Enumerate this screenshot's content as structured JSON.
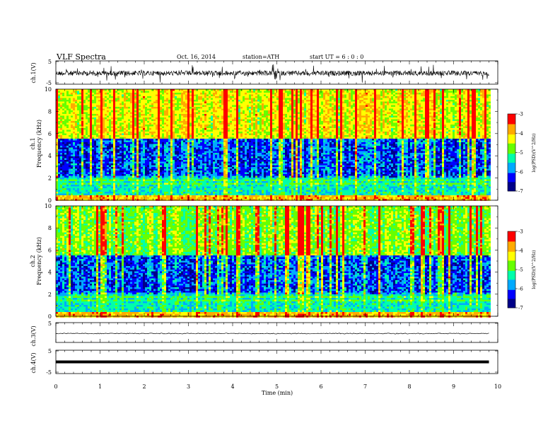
{
  "header": {
    "title": "VLF  Spectra",
    "date": "Oct. 16, 2014",
    "station": "station=ATH",
    "start": "start  UT  =   6  : 0  : 0"
  },
  "chart_data": [
    {
      "type": "line",
      "name": "ch1-waveform",
      "ylabel": "ch.1(V)",
      "ylim": [
        -5,
        5
      ],
      "y_ticks": [
        "5",
        "-5"
      ],
      "style": "noisy broadband waveform around +0.3 V with spikes up to ~±2 V",
      "xlim": [
        0,
        9.8
      ]
    },
    {
      "type": "heatmap",
      "name": "ch1-spectrogram",
      "ylabel_line1": "ch.1",
      "ylabel_line2": "Frequency  (kHz)",
      "ylim": [
        0,
        10
      ],
      "y_ticks": [
        "0",
        "2",
        "4",
        "6",
        "8",
        "10"
      ],
      "xlim": [
        0,
        9.8
      ],
      "colorbar": {
        "label": "log(PSD)(V^2/Hz)",
        "range": [
          -7,
          -3
        ],
        "ticks": [
          "-3",
          "-4",
          "-5",
          "-6",
          "-7"
        ],
        "colormap": [
          "#000088",
          "#0000ff",
          "#00aaff",
          "#00ffaa",
          "#66ff00",
          "#ffff00",
          "#ffaa00",
          "#ff0000",
          "#ffffff"
        ]
      },
      "description_bands_khz": {
        "0-0.5": "red/orange strong narrow lines",
        "0.5-2": "cyan/green horizontal lines",
        "2-5.5": "blue/cyan with dark blue patches",
        "5.5-10": "green/yellow/red broadband with vertical sferic streaks"
      }
    },
    {
      "type": "heatmap",
      "name": "ch2-spectrogram",
      "ylabel_line1": "ch.2",
      "ylabel_line2": "Frequency  (kHz)",
      "ylim": [
        0,
        10
      ],
      "y_ticks": [
        "0",
        "2",
        "4",
        "6",
        "8",
        "10"
      ],
      "xlim": [
        0,
        9.8
      ],
      "colorbar": {
        "label": "log(PSD)(V^2/Hz)",
        "range": [
          -7,
          -3
        ],
        "ticks": [
          "-3",
          "-4",
          "-5",
          "-6",
          "-7"
        ]
      }
    },
    {
      "type": "line",
      "name": "ch3-waveform",
      "ylabel": "ch.3(V)",
      "ylim": [
        -5,
        5
      ],
      "y_ticks": [
        "5"
      ],
      "level": -0.5,
      "xlim": [
        0,
        9.8
      ]
    },
    {
      "type": "line",
      "name": "ch4-waveform",
      "ylabel": "ch.4(V)",
      "ylim": [
        -5,
        5
      ],
      "y_ticks": [
        "5",
        "-5"
      ],
      "level": 0,
      "xlim": [
        0,
        9.8
      ]
    }
  ],
  "xaxis": {
    "label": "Time  (min)",
    "range": [
      0,
      10
    ],
    "ticks": [
      "0",
      "1",
      "2",
      "3",
      "4",
      "5",
      "6",
      "7",
      "8",
      "9",
      "10"
    ]
  }
}
